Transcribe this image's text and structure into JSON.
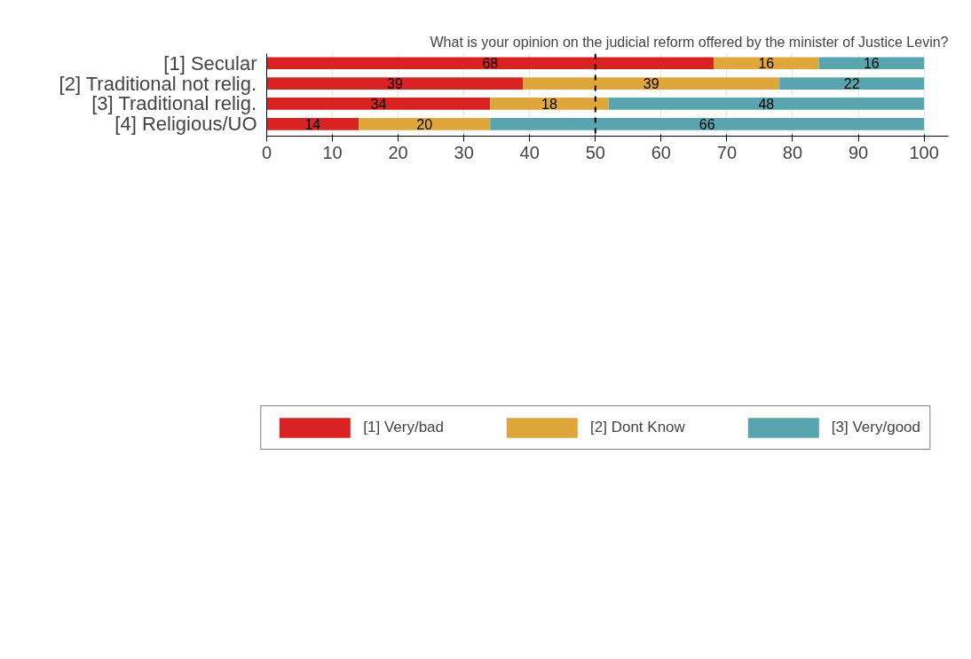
{
  "chart_data": {
    "type": "bar",
    "orientation": "horizontal",
    "stacked": true,
    "title": "What is your opinion on the judicial reform offered by the minister of Justice Levin?",
    "categories": [
      "[1] Secular",
      "[2] Traditional not relig.",
      "[3] Traditional relig.",
      "[4] Religious/UO"
    ],
    "series": [
      {
        "name": "[1] Very/bad",
        "color": "#d92323",
        "values": [
          68,
          39,
          34,
          14
        ]
      },
      {
        "name": "[2] Dont Know",
        "color": "#dea63b",
        "values": [
          16,
          39,
          18,
          20
        ]
      },
      {
        "name": "[3] Very/good",
        "color": "#58a5b0",
        "values": [
          16,
          22,
          48,
          66
        ]
      }
    ],
    "xlim": [
      0,
      103.7
    ],
    "xticks": [
      0,
      10,
      20,
      30,
      40,
      50,
      60,
      70,
      80,
      90,
      100
    ],
    "grid": "x",
    "legend": "bottom",
    "data_labels": true,
    "ref_lines": [
      {
        "axis": "x",
        "value": 50,
        "label": null,
        "color": "#000000",
        "line_style": "dashed"
      }
    ]
  }
}
